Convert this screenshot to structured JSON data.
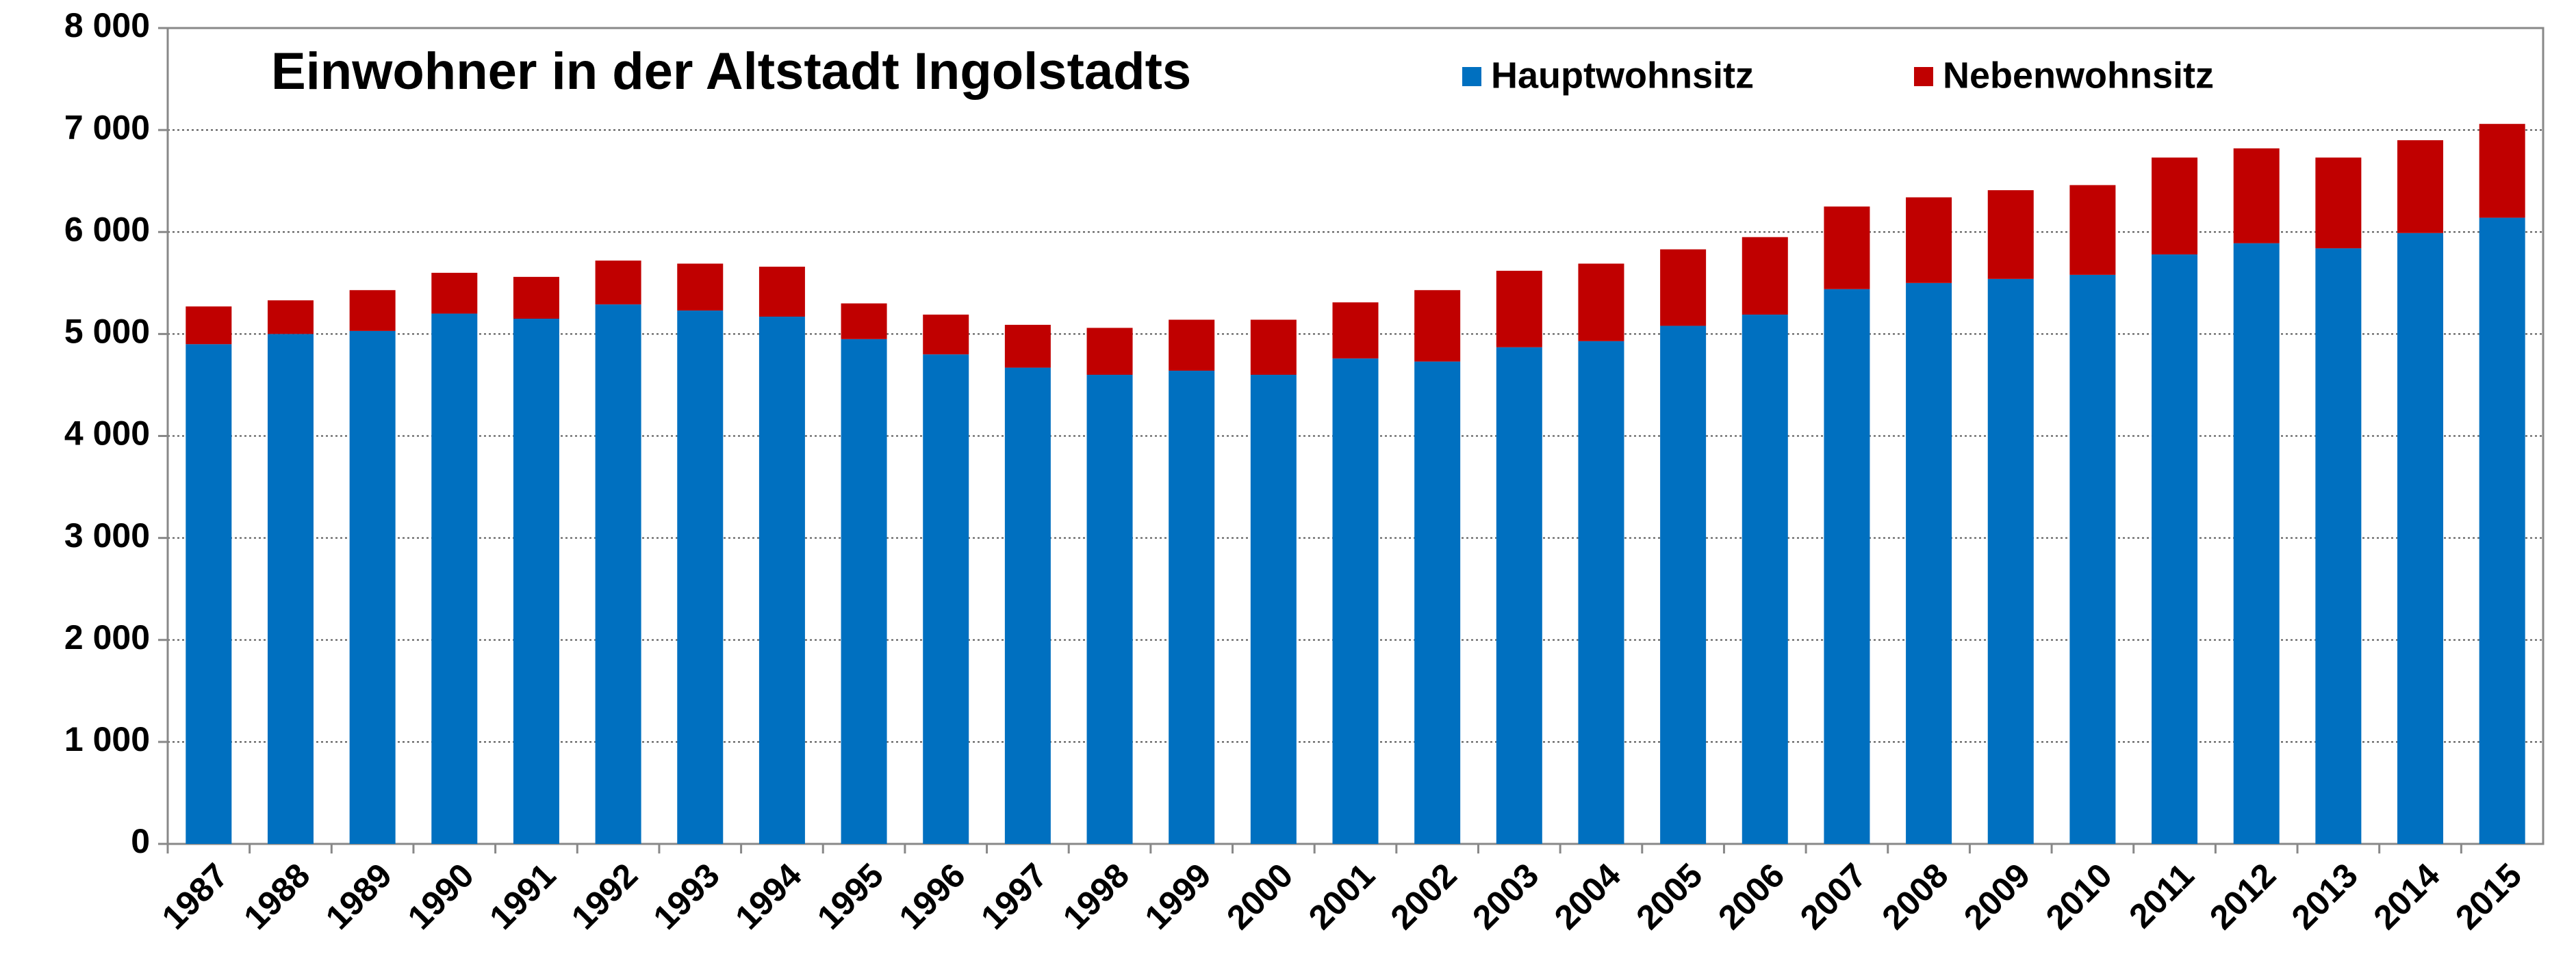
{
  "chart_data": {
    "type": "stacked-bar",
    "title": "Einwohner in der Altstadt Ingolstadts",
    "categories": [
      "1987",
      "1988",
      "1989",
      "1990",
      "1991",
      "1992",
      "1993",
      "1994",
      "1995",
      "1996",
      "1997",
      "1998",
      "1999",
      "2000",
      "2001",
      "2002",
      "2003",
      "2004",
      "2005",
      "2006",
      "2007",
      "2008",
      "2009",
      "2010",
      "2011",
      "2012",
      "2013",
      "2014",
      "2015"
    ],
    "series": [
      {
        "name": "Hauptwohnsitz",
        "color": "#0070c0",
        "values": [
          4900,
          5000,
          5030,
          5200,
          5150,
          5290,
          5230,
          5170,
          4950,
          4800,
          4670,
          4600,
          4640,
          4600,
          4760,
          4730,
          4870,
          4930,
          5080,
          5190,
          5440,
          5500,
          5540,
          5580,
          5780,
          5890,
          5840,
          5990,
          6140
        ]
      },
      {
        "name": "Nebenwohnsitz",
        "color": "#c00000",
        "values": [
          370,
          330,
          400,
          400,
          410,
          430,
          460,
          490,
          350,
          390,
          420,
          460,
          500,
          540,
          550,
          700,
          750,
          760,
          750,
          760,
          810,
          840,
          870,
          880,
          950,
          930,
          890,
          910,
          920
        ]
      }
    ],
    "ylim": [
      0,
      8000
    ],
    "yticks": [
      0,
      {
        "value": 1000,
        "label": "1 000"
      },
      {
        "value": 2000,
        "label": "2 000"
      },
      {
        "value": 3000,
        "label": "3 000"
      },
      {
        "value": 4000,
        "label": "4 000"
      },
      {
        "value": 5000,
        "label": "5 000"
      },
      {
        "value": 6000,
        "label": "6 000"
      },
      {
        "value": 7000,
        "label": "7 000"
      },
      {
        "value": 8000,
        "label": "8 000"
      }
    ],
    "grid": true
  }
}
